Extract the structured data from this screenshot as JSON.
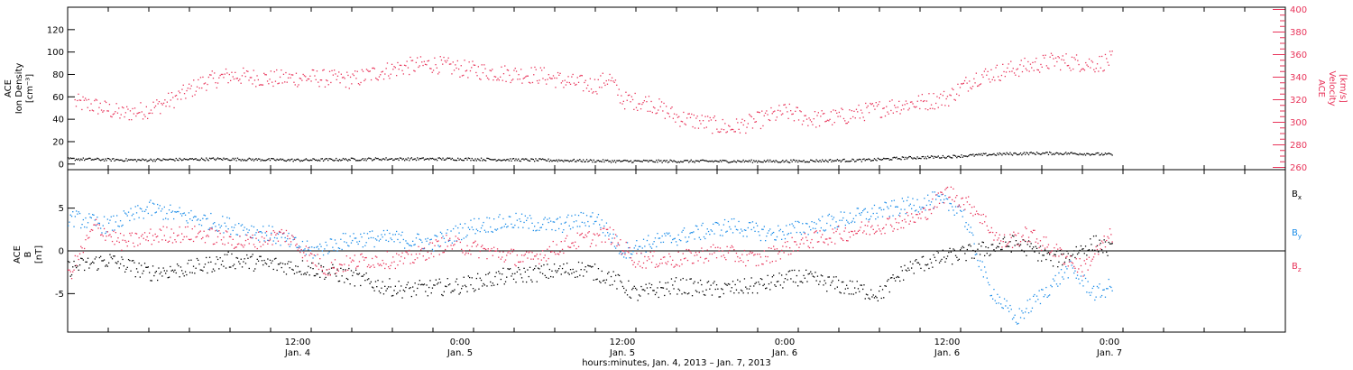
{
  "chart_data": [
    {
      "type": "scatter",
      "panel": "top",
      "x_range": [
        "2013-01-03T19:00",
        "2013-01-07T13:00"
      ],
      "ylabel_left": [
        "ACE",
        "Ion Density",
        "[cm⁻³]"
      ],
      "ylabel_right": [
        "ACE",
        "Velocity",
        "[km/s]"
      ],
      "y_left_ticks": [
        0,
        20,
        40,
        60,
        80,
        100,
        120
      ],
      "y_left_range": [
        -5,
        140
      ],
      "y_right_ticks": [
        260,
        280,
        300,
        320,
        340,
        360,
        380,
        400
      ],
      "y_right_range": [
        258,
        402
      ],
      "series": [
        {
          "axis": "right",
          "color": "#e8345a",
          "values": [
            [
              "2013-01-03T19:30",
              318
            ],
            [
              "2013-01-03T21:00",
              315
            ],
            [
              "2013-01-03T23:00",
              308
            ],
            [
              "2013-01-04T01:00",
              312
            ],
            [
              "2013-01-04T03:00",
              322
            ],
            [
              "2013-01-04T05:00",
              336
            ],
            [
              "2013-01-04T07:00",
              342
            ],
            [
              "2013-01-04T10:00",
              339
            ],
            [
              "2013-01-04T13:00",
              340
            ],
            [
              "2013-01-04T16:00",
              338
            ],
            [
              "2013-01-04T18:00",
              345
            ],
            [
              "2013-01-04T20:00",
              350
            ],
            [
              "2013-01-04T22:00",
              352
            ],
            [
              "2013-01-05T00:00",
              348
            ],
            [
              "2013-01-05T03:00",
              344
            ],
            [
              "2013-01-05T06:00",
              342
            ],
            [
              "2013-01-05T08:00",
              336
            ],
            [
              "2013-01-05T10:00",
              333
            ],
            [
              "2013-01-05T11:00",
              340
            ],
            [
              "2013-01-05T12:00",
              320
            ],
            [
              "2013-01-05T14:00",
              318
            ],
            [
              "2013-01-05T16:00",
              305
            ],
            [
              "2013-01-05T18:00",
              300
            ],
            [
              "2013-01-05T20:00",
              295
            ],
            [
              "2013-01-05T22:00",
              302
            ],
            [
              "2013-01-06T00:00",
              310
            ],
            [
              "2013-01-06T02:00",
              303
            ],
            [
              "2013-01-06T04:00",
              305
            ],
            [
              "2013-01-06T06:00",
              310
            ],
            [
              "2013-01-06T08:00",
              315
            ],
            [
              "2013-01-06T10:00",
              318
            ],
            [
              "2013-01-06T12:00",
              322
            ],
            [
              "2013-01-06T14:00",
              340
            ],
            [
              "2013-01-06T17:00",
              348
            ],
            [
              "2013-01-06T20:00",
              355
            ],
            [
              "2013-01-06T23:00",
              352
            ],
            [
              "2013-01-07T00:10",
              356
            ]
          ]
        },
        {
          "axis": "left",
          "color": "#000000",
          "values": [
            [
              "2013-01-03T19:00",
              5
            ],
            [
              "2013-01-04T00:00",
              4
            ],
            [
              "2013-01-04T06:00",
              5
            ],
            [
              "2013-01-04T12:00",
              4
            ],
            [
              "2013-01-04T18:00",
              5
            ],
            [
              "2013-01-05T00:00",
              5
            ],
            [
              "2013-01-05T06:00",
              4
            ],
            [
              "2013-01-05T12:00",
              3
            ],
            [
              "2013-01-05T18:00",
              3
            ],
            [
              "2013-01-06T00:00",
              3
            ],
            [
              "2013-01-06T06:00",
              4
            ],
            [
              "2013-01-06T09:00",
              6
            ],
            [
              "2013-01-06T12:00",
              7
            ],
            [
              "2013-01-06T15:00",
              9
            ],
            [
              "2013-01-06T18:00",
              10
            ],
            [
              "2013-01-06T21:00",
              10
            ],
            [
              "2013-01-07T00:10",
              9
            ]
          ]
        }
      ]
    },
    {
      "type": "scatter",
      "panel": "bottom",
      "x_range": [
        "2013-01-03T19:00",
        "2013-01-07T13:00"
      ],
      "ylabel_left": [
        "ACE",
        "B",
        "[nT]"
      ],
      "y_ticks": [
        -5,
        0,
        5
      ],
      "y_range": [
        -9.5,
        9.5
      ],
      "zero_line": true,
      "legend_placement": "right",
      "series": [
        {
          "name": "Bx",
          "name_main": "B",
          "name_sub": "x",
          "color": "#000000",
          "values": [
            [
              "2013-01-03T19:00",
              -2
            ],
            [
              "2013-01-03T22:00",
              -1
            ],
            [
              "2013-01-04T01:00",
              -2.5
            ],
            [
              "2013-01-04T04:00",
              -2
            ],
            [
              "2013-01-04T07:00",
              -1
            ],
            [
              "2013-01-04T10:00",
              -1.5
            ],
            [
              "2013-01-04T13:00",
              -2
            ],
            [
              "2013-01-04T16:00",
              -3
            ],
            [
              "2013-01-04T18:00",
              -4
            ],
            [
              "2013-01-04T20:00",
              -4.5
            ],
            [
              "2013-01-05T00:00",
              -4
            ],
            [
              "2013-01-05T03:00",
              -3
            ],
            [
              "2013-01-05T06:00",
              -2.5
            ],
            [
              "2013-01-05T09:00",
              -2
            ],
            [
              "2013-01-05T11:00",
              -3
            ],
            [
              "2013-01-05T13:00",
              -5
            ],
            [
              "2013-01-05T16:00",
              -4
            ],
            [
              "2013-01-05T19:00",
              -4.5
            ],
            [
              "2013-01-05T22:00",
              -4
            ],
            [
              "2013-01-06T01:00",
              -3
            ],
            [
              "2013-01-06T04:00",
              -4
            ],
            [
              "2013-01-06T07:00",
              -5
            ],
            [
              "2013-01-06T09:00",
              -2
            ],
            [
              "2013-01-06T11:00",
              -1
            ],
            [
              "2013-01-06T14:00",
              0
            ],
            [
              "2013-01-06T17:00",
              1
            ],
            [
              "2013-01-06T20:00",
              -1
            ],
            [
              "2013-01-06T23:00",
              1
            ],
            [
              "2013-01-07T00:10",
              0
            ]
          ]
        },
        {
          "name": "By",
          "name_main": "B",
          "name_sub": "y",
          "color": "#1a8ce8",
          "values": [
            [
              "2013-01-03T19:00",
              4
            ],
            [
              "2013-01-03T22:00",
              3
            ],
            [
              "2013-01-04T01:00",
              5
            ],
            [
              "2013-01-04T04:00",
              4
            ],
            [
              "2013-01-04T07:00",
              3
            ],
            [
              "2013-01-04T10:00",
              2
            ],
            [
              "2013-01-04T13:00",
              0
            ],
            [
              "2013-01-04T16:00",
              1.5
            ],
            [
              "2013-01-04T19:00",
              1.5
            ],
            [
              "2013-01-04T22:00",
              1
            ],
            [
              "2013-01-05T01:00",
              3
            ],
            [
              "2013-01-05T04:00",
              3.5
            ],
            [
              "2013-01-05T07:00",
              3
            ],
            [
              "2013-01-05T10:00",
              4
            ],
            [
              "2013-01-05T12:00",
              0
            ],
            [
              "2013-01-05T14:00",
              1
            ],
            [
              "2013-01-05T17:00",
              2
            ],
            [
              "2013-01-05T20:00",
              3
            ],
            [
              "2013-01-05T23:00",
              2
            ],
            [
              "2013-01-06T02:00",
              3
            ],
            [
              "2013-01-06T05:00",
              4
            ],
            [
              "2013-01-06T08:00",
              5
            ],
            [
              "2013-01-06T11:00",
              6
            ],
            [
              "2013-01-06T13:00",
              5
            ],
            [
              "2013-01-06T15:00",
              -4
            ],
            [
              "2013-01-06T17:00",
              -8
            ],
            [
              "2013-01-06T19:00",
              -5
            ],
            [
              "2013-01-06T21:00",
              -2
            ],
            [
              "2013-01-06T23:00",
              -5
            ],
            [
              "2013-01-07T00:10",
              -4
            ]
          ]
        },
        {
          "name": "Bz",
          "name_main": "B",
          "name_sub": "z",
          "color": "#e8345a",
          "values": [
            [
              "2013-01-03T19:00",
              -3
            ],
            [
              "2013-01-03T21:00",
              3
            ],
            [
              "2013-01-03T23:00",
              1
            ],
            [
              "2013-01-04T02:00",
              2
            ],
            [
              "2013-01-04T05:00",
              2
            ],
            [
              "2013-01-04T08:00",
              1
            ],
            [
              "2013-01-04T11:00",
              2
            ],
            [
              "2013-01-04T14:00",
              -2
            ],
            [
              "2013-01-04T17:00",
              -1
            ],
            [
              "2013-01-04T20:00",
              -1
            ],
            [
              "2013-01-04T23:00",
              1
            ],
            [
              "2013-01-05T02:00",
              0
            ],
            [
              "2013-01-05T05:00",
              -1
            ],
            [
              "2013-01-05T08:00",
              1
            ],
            [
              "2013-01-05T11:00",
              2
            ],
            [
              "2013-01-05T13:00",
              -1
            ],
            [
              "2013-01-05T16:00",
              -1
            ],
            [
              "2013-01-05T19:00",
              0
            ],
            [
              "2013-01-05T22:00",
              -1
            ],
            [
              "2013-01-06T01:00",
              1
            ],
            [
              "2013-01-06T04:00",
              2
            ],
            [
              "2013-01-06T07:00",
              3
            ],
            [
              "2013-01-06T10:00",
              4
            ],
            [
              "2013-01-06T12:00",
              7
            ],
            [
              "2013-01-06T14:00",
              5
            ],
            [
              "2013-01-06T16:00",
              1
            ],
            [
              "2013-01-06T18:00",
              2
            ],
            [
              "2013-01-06T20:00",
              0
            ],
            [
              "2013-01-06T22:00",
              -2
            ],
            [
              "2013-01-07T00:10",
              2
            ]
          ]
        }
      ]
    }
  ],
  "x_axis": {
    "range": [
      "2013-01-03T19:00",
      "2013-01-07T13:00"
    ],
    "tick_labels": [
      {
        "x": "2013-01-04T12:00",
        "time": "12:00",
        "date": "Jan. 4"
      },
      {
        "x": "2013-01-05T00:00",
        "time": "0:00",
        "date": "Jan. 5"
      },
      {
        "x": "2013-01-05T12:00",
        "time": "12:00",
        "date": "Jan. 5"
      },
      {
        "x": "2013-01-06T00:00",
        "time": "0:00",
        "date": "Jan. 6"
      },
      {
        "x": "2013-01-06T12:00",
        "time": "12:00",
        "date": "Jan. 6"
      },
      {
        "x": "2013-01-07T00:00",
        "time": "0:00",
        "date": "Jan. 7"
      }
    ],
    "xlabel": "hours:minutes, Jan.  4, 2013 – Jan.  7, 2013"
  }
}
